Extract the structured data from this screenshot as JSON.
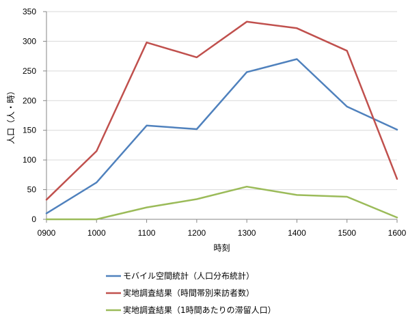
{
  "chart_data": {
    "type": "line",
    "title": "",
    "xlabel": "時刻",
    "ylabel": "人口（人・時）",
    "categories": [
      "0900",
      "1000",
      "1100",
      "1200",
      "1300",
      "1400",
      "1500",
      "1600"
    ],
    "yticks": [
      0,
      50,
      100,
      150,
      200,
      250,
      300,
      350
    ],
    "ylim": [
      0,
      350
    ],
    "grid": "horizontal",
    "legend_position": "bottom",
    "series": [
      {
        "name": "モバイル空間統計（人口分布統計）",
        "color": "#4F81BD",
        "values": [
          10,
          62,
          158,
          152,
          248,
          270,
          190,
          151
        ]
      },
      {
        "name": "実地調査結果（時間帯別来訪者数）",
        "color": "#C0504D",
        "values": [
          33,
          115,
          298,
          273,
          333,
          322,
          284,
          68
        ]
      },
      {
        "name": "実地調査結果（1時間あたりの滞留人口）",
        "color": "#9BBB59",
        "values": [
          0,
          0,
          20,
          34,
          55,
          41,
          38,
          3
        ]
      }
    ]
  }
}
